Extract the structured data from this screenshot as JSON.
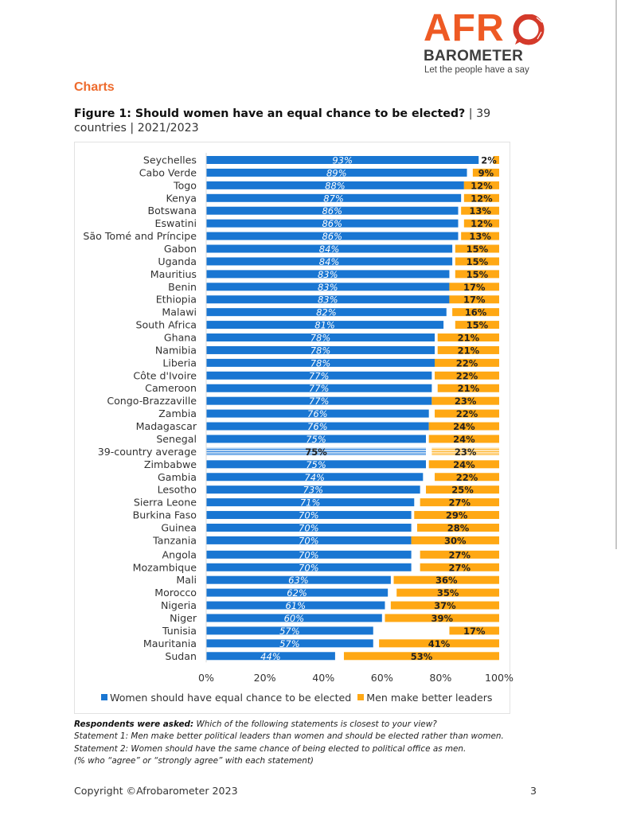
{
  "logo": {
    "wordmark_top": "AFR",
    "wordmark_bottom": "BAROMETER",
    "tagline": "Let the people have a say",
    "brand_color": "#ee5a24"
  },
  "section_title": "Charts",
  "figure": {
    "title_bold": "Figure 1: Should women have an equal chance to be elected?",
    "title_meta": " | 39 countries | 2021/2023"
  },
  "chart_data": {
    "type": "bar",
    "orientation": "horizontal",
    "stacking": "diverging: series 1 left-aligned at 0%, series 2 right-aligned at 100%",
    "title": "Figure 1: Should women have an equal chance to be elected? | 39 countries | 2021/2023",
    "xlabel": "",
    "ylabel": "",
    "xlim": [
      0,
      100
    ],
    "x_ticks": [
      "0%",
      "20%",
      "40%",
      "60%",
      "80%",
      "100%"
    ],
    "grid": false,
    "legend_position": "bottom",
    "highlight_category": "39-country average",
    "categories": [
      "Seychelles",
      "Cabo Verde",
      "Togo",
      "Kenya",
      "Botswana",
      "Eswatini",
      "São Tomé and Príncipe",
      "Gabon",
      "Uganda",
      "Mauritius",
      "Benin",
      "Ethiopia",
      "Malawi",
      "South Africa",
      "Ghana",
      "Namibia",
      "Liberia",
      "Côte d'Ivoire",
      "Cameroon",
      "Congo-Brazzaville",
      "Zambia",
      "Madagascar",
      "Senegal",
      "39-country average",
      "Zimbabwe",
      "Gambia",
      "Lesotho",
      "Sierra Leone",
      "Burkina Faso",
      "Guinea",
      "Tanzania",
      "Angola",
      "Mozambique",
      "Mali",
      "Morocco",
      "Nigeria",
      "Niger",
      "Tunisia",
      "Mauritania",
      "Sudan"
    ],
    "series": [
      {
        "name": "Women should have equal chance to be elected",
        "color": "#1976d2",
        "values": [
          93,
          89,
          88,
          87,
          86,
          86,
          86,
          84,
          84,
          83,
          83,
          83,
          82,
          81,
          78,
          78,
          78,
          77,
          77,
          77,
          76,
          76,
          75,
          75,
          75,
          74,
          73,
          71,
          70,
          70,
          70,
          70,
          70,
          63,
          62,
          61,
          60,
          57,
          57,
          44
        ]
      },
      {
        "name": "Men make better leaders",
        "color": "#ffa814",
        "values": [
          2,
          9,
          12,
          12,
          13,
          12,
          13,
          15,
          15,
          15,
          17,
          17,
          16,
          15,
          21,
          21,
          22,
          22,
          21,
          23,
          22,
          24,
          24,
          23,
          24,
          22,
          25,
          27,
          29,
          28,
          30,
          27,
          27,
          36,
          35,
          37,
          39,
          17,
          41,
          53
        ]
      }
    ]
  },
  "notes": {
    "asked_label": "Respondents were asked:",
    "asked_text": " Which of the following statements is closest to your view?",
    "statement1": "Statement 1: Men make better political leaders than women and should be elected rather than women.",
    "statement2": "Statement 2: Women should have the same chance of being elected to political office as men.",
    "measure": "(% who “agree” or “strongly agree” with each statement)"
  },
  "footer": {
    "copyright": "Copyright ©Afrobarometer 2023",
    "page_number": "3"
  }
}
